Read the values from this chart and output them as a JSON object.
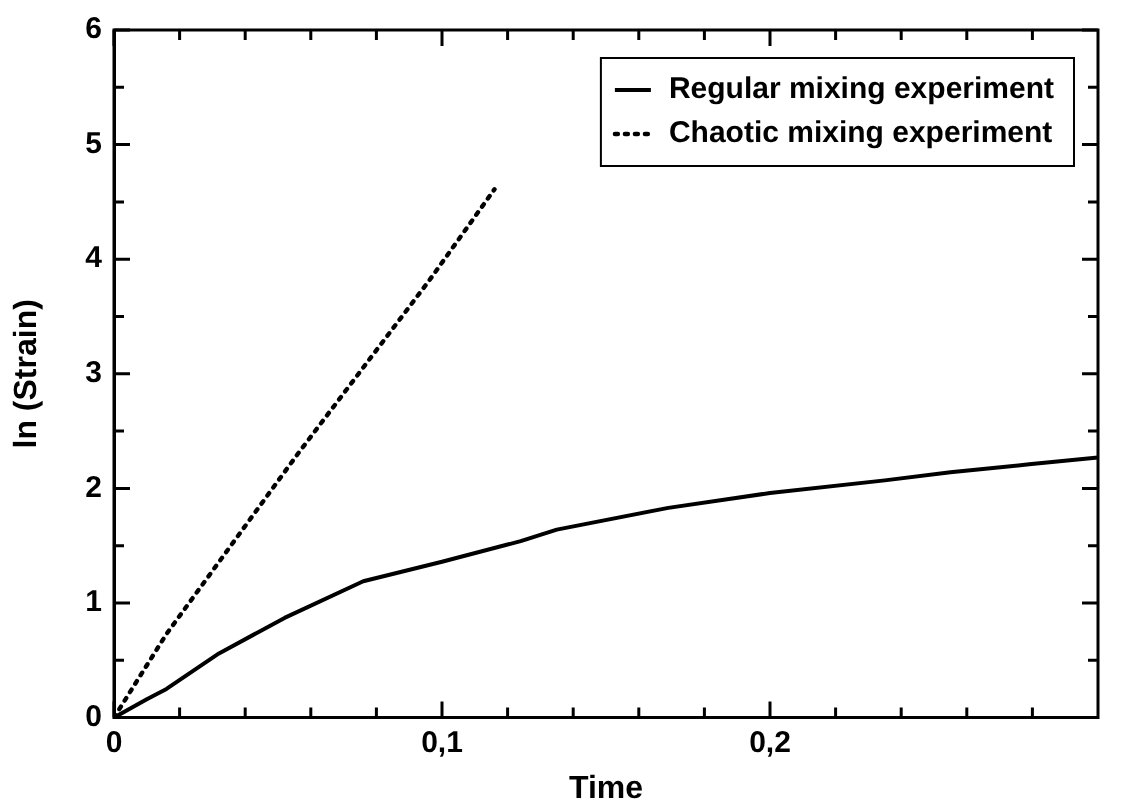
{
  "chart_data": {
    "type": "line",
    "xlabel": "Time",
    "ylabel": "ln (Strain)",
    "legend": "top right",
    "grid": false,
    "marker": "none",
    "xlim": [
      0,
      0.3
    ],
    "ylim": [
      0,
      6
    ],
    "xticks": [
      0,
      {
        "value": 0.02,
        "label": null
      },
      {
        "value": 0.04,
        "label": null
      },
      {
        "value": 0.06,
        "label": null
      },
      {
        "value": 0.08,
        "label": null
      },
      {
        "value": 0.1,
        "label": "0,1"
      },
      {
        "value": 0.12,
        "label": null
      },
      {
        "value": 0.14,
        "label": null
      },
      {
        "value": 0.16,
        "label": null
      },
      {
        "value": 0.18,
        "label": null
      },
      {
        "value": 0.2,
        "label": "0,2"
      },
      {
        "value": 0.22,
        "label": null
      },
      {
        "value": 0.24,
        "label": null
      },
      {
        "value": 0.26,
        "label": null
      },
      {
        "value": 0.28,
        "label": null
      }
    ],
    "yticks": [
      0,
      {
        "value": 0.5,
        "label": null
      },
      1,
      {
        "value": 1.5,
        "label": null
      },
      2,
      {
        "value": 2.5,
        "label": null
      },
      3,
      {
        "value": 3.5,
        "label": null
      },
      4,
      {
        "value": 4.5,
        "label": null
      },
      5,
      {
        "value": 5.5,
        "label": null
      },
      6
    ],
    "series": [
      {
        "name": "Regular mixing experiment",
        "color": "#000000",
        "line_style": "solid",
        "x": [
          0,
          0.01,
          0.016,
          0.032,
          0.052,
          0.076,
          0.1,
          0.124,
          0.135,
          0.169,
          0.2,
          0.235,
          0.255,
          0.279,
          0.3
        ],
        "values": [
          0,
          0.16,
          0.25,
          0.56,
          0.87,
          1.19,
          1.36,
          1.54,
          1.64,
          1.83,
          1.96,
          2.07,
          2.14,
          2.21,
          2.27
        ]
      },
      {
        "name": "Chaotic mixing experiment",
        "color": "#000000",
        "line_style": "dotted",
        "x": [
          0,
          0.016,
          0.056,
          0.096,
          0.116
        ],
        "values": [
          0,
          0.73,
          2.3,
          3.81,
          4.61
        ]
      }
    ]
  }
}
